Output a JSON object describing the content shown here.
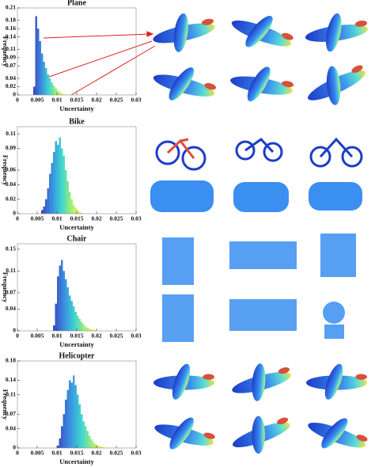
{
  "chart_data": [
    {
      "type": "histogram",
      "title": "Plane",
      "xlabel": "Uncertainty",
      "ylabel": "Frequency",
      "bins": [
        0.004,
        0.0045,
        0.005,
        0.0055,
        0.006,
        0.0065,
        0.007,
        0.0075,
        0.008,
        0.0085,
        0.009,
        0.0095,
        0.01,
        0.0105,
        0.011,
        0.0115,
        0.012
      ],
      "counts": [
        0.02,
        0.19,
        0.16,
        0.13,
        0.1,
        0.08,
        0.065,
        0.05,
        0.04,
        0.03,
        0.022,
        0.016,
        0.011,
        0.007,
        0.004,
        0.002
      ],
      "xlim": [
        0,
        0.03
      ],
      "xticks": [
        0,
        0.005,
        0.01,
        0.015,
        0.02,
        0.025,
        0.03
      ],
      "ylim": [
        0,
        0.21
      ],
      "yticks": [
        0,
        0.02,
        0.04,
        0.07,
        0.09,
        0.11,
        0.14,
        0.16,
        0.18,
        0.21
      ],
      "color_stops": [
        "#3b4cc0",
        "#3a8fe0",
        "#3fd6d0",
        "#a8f070",
        "#f0f060"
      ]
    },
    {
      "type": "histogram",
      "title": "Bike",
      "xlabel": "Uncertainty",
      "ylabel": "Frequency",
      "bins": [
        0.006,
        0.0065,
        0.007,
        0.0075,
        0.008,
        0.0085,
        0.009,
        0.0095,
        0.01,
        0.0105,
        0.011,
        0.0115,
        0.012,
        0.0125,
        0.013,
        0.0135,
        0.014,
        0.0145,
        0.015,
        0.0155,
        0.016,
        0.0165
      ],
      "counts": [
        0.005,
        0.01,
        0.02,
        0.035,
        0.055,
        0.07,
        0.085,
        0.1,
        0.095,
        0.105,
        0.09,
        0.08,
        0.06,
        0.045,
        0.03,
        0.02,
        0.012,
        0.008,
        0.005,
        0.003,
        0.001
      ],
      "xlim": [
        0,
        0.03
      ],
      "xticks": [
        0,
        0.005,
        0.01,
        0.015,
        0.02,
        0.025,
        0.03
      ],
      "ylim": [
        0,
        0.12
      ],
      "yticks": [
        0,
        0.02,
        0.04,
        0.06,
        0.09,
        0.11
      ],
      "color_stops": [
        "#3b4cc0",
        "#3a8fe0",
        "#3fd6d0",
        "#a8f070",
        "#f0f060"
      ]
    },
    {
      "type": "histogram",
      "title": "Chair",
      "xlabel": "Uncertainty",
      "ylabel": "Frequency",
      "bins": [
        0.009,
        0.0095,
        0.01,
        0.0105,
        0.011,
        0.0115,
        0.012,
        0.0125,
        0.013,
        0.0135,
        0.014,
        0.0145,
        0.015,
        0.0155,
        0.016,
        0.0165,
        0.017,
        0.0175,
        0.018,
        0.0185,
        0.019,
        0.0195,
        0.02
      ],
      "counts": [
        0.01,
        0.05,
        0.1,
        0.12,
        0.13,
        0.11,
        0.095,
        0.08,
        0.065,
        0.055,
        0.045,
        0.035,
        0.028,
        0.022,
        0.016,
        0.012,
        0.008,
        0.006,
        0.004,
        0.003,
        0.002,
        0.001
      ],
      "xlim": [
        0,
        0.03
      ],
      "xticks": [
        0,
        0.005,
        0.01,
        0.015,
        0.02,
        0.025,
        0.03
      ],
      "ylim": [
        0,
        0.16
      ],
      "yticks": [
        0,
        0.04,
        0.07,
        0.11,
        0.15
      ],
      "color_stops": [
        "#3b4cc0",
        "#3a8fe0",
        "#3fd6d0",
        "#a8f070",
        "#f0f060"
      ]
    },
    {
      "type": "histogram",
      "title": "Helicopter",
      "xlabel": "Uncertainty",
      "ylabel": "Frequency",
      "bins": [
        0.01,
        0.0105,
        0.011,
        0.0115,
        0.012,
        0.0125,
        0.013,
        0.0135,
        0.014,
        0.0145,
        0.015,
        0.0155,
        0.016,
        0.0165,
        0.017,
        0.0175,
        0.018,
        0.0185,
        0.019,
        0.0195,
        0.02,
        0.0205,
        0.021,
        0.0215,
        0.022,
        0.0225
      ],
      "counts": [
        0.005,
        0.02,
        0.045,
        0.07,
        0.1,
        0.12,
        0.14,
        0.135,
        0.15,
        0.13,
        0.11,
        0.09,
        0.07,
        0.055,
        0.045,
        0.035,
        0.025,
        0.018,
        0.012,
        0.008,
        0.006,
        0.004,
        0.003,
        0.002,
        0.001
      ],
      "xlim": [
        0,
        0.03
      ],
      "xticks": [
        0,
        0.005,
        0.01,
        0.015,
        0.02,
        0.025,
        0.03
      ],
      "ylim": [
        0,
        0.18
      ],
      "yticks": [
        0,
        0.04,
        0.07,
        0.11,
        0.14,
        0.18
      ],
      "color_stops": [
        "#3b4cc0",
        "#3a8fe0",
        "#3fd6d0",
        "#a8f070",
        "#f0f060"
      ]
    }
  ]
}
